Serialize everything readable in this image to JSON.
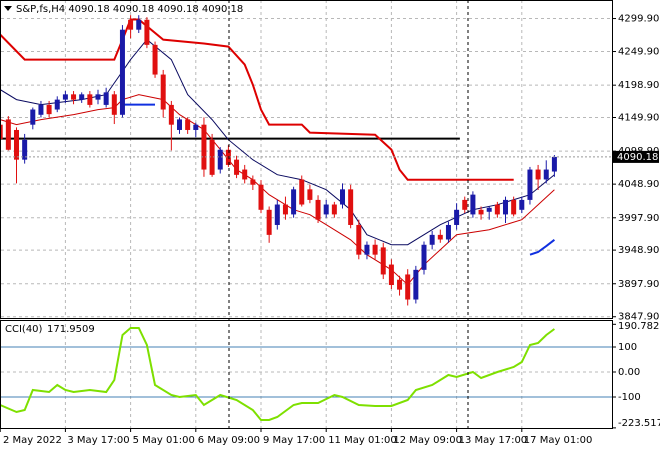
{
  "chart_data": [
    {
      "type": "candlestick",
      "title": "S&P,fs,H4 4090.18 4090.18 4090.18 4090.18",
      "categories": [
        "2 May 2022",
        null,
        null,
        null,
        null,
        null,
        null,
        null,
        "3 May 17:00",
        null,
        null,
        null,
        null,
        null,
        null,
        null,
        "5 May 01:00",
        null,
        null,
        null,
        null,
        null,
        null,
        null,
        "6 May 09:00",
        null,
        null,
        null,
        null,
        null,
        null,
        null,
        "9 May 17:00",
        null,
        null,
        null,
        null,
        null,
        null,
        null,
        "11 May 01:00",
        null,
        null,
        null,
        null,
        null,
        null,
        null,
        "12 May 09:00",
        null,
        null,
        null,
        null,
        null,
        null,
        null,
        "13 May 17:00",
        null,
        null,
        null,
        null,
        null,
        null,
        null,
        "17 May 01:00",
        null,
        null,
        null,
        null
      ],
      "open": [
        4139,
        4147,
        4131,
        4086,
        4139,
        4154,
        4169,
        4162,
        4177,
        4185,
        4177,
        4185,
        4177,
        4169,
        4185,
        4154,
        4298,
        4283,
        4298,
        4260,
        4215,
        4169,
        4131,
        4147,
        4131,
        4139,
        4116,
        4071,
        4101,
        4086,
        4071,
        4056,
        4048,
        4010,
        3987,
        4018,
        4003,
        4056,
        4041,
        4025,
        4003,
        4018,
        4018,
        4041,
        3987,
        3942,
        3957,
        3953,
        3927,
        3904,
        3912,
        3874,
        3919,
        3957,
        3972,
        3965,
        3987,
        4025,
        4003,
        4010,
        4007,
        4018,
        4003,
        4025,
        4010,
        4025,
        4071,
        4056,
        4068
      ],
      "high": [
        4145,
        4152,
        4135,
        4125,
        4165,
        4175,
        4175,
        4182,
        4190,
        4190,
        4188,
        4190,
        4192,
        4195,
        4190,
        4290,
        4305,
        4305,
        4302,
        4265,
        4222,
        4175,
        4150,
        4150,
        4142,
        4150,
        4125,
        4105,
        4108,
        4092,
        4078,
        4062,
        4055,
        4015,
        4025,
        4030,
        4045,
        4062,
        4048,
        4032,
        4025,
        4022,
        4050,
        4048,
        3995,
        3962,
        3965,
        3960,
        3935,
        3910,
        3920,
        3925,
        3962,
        3978,
        3980,
        3992,
        4020,
        4030,
        4038,
        4015,
        4015,
        4022,
        4030,
        4030,
        4030,
        4075,
        4078,
        4085,
        4093
      ],
      "low": [
        4110,
        4100,
        4050,
        4080,
        4132,
        4150,
        4150,
        4158,
        4172,
        4170,
        4172,
        4165,
        4170,
        4165,
        4140,
        4150,
        4270,
        4278,
        4255,
        4210,
        4150,
        4100,
        4125,
        4125,
        4120,
        4060,
        4060,
        4065,
        4075,
        4058,
        4050,
        4040,
        4005,
        3960,
        3980,
        3995,
        3998,
        4015,
        4020,
        3990,
        3998,
        3998,
        4012,
        3982,
        3935,
        3935,
        3935,
        3905,
        3890,
        3880,
        3865,
        3868,
        3912,
        3950,
        3960,
        3960,
        3980,
        4005,
        3998,
        3995,
        3995,
        3998,
        3990,
        4000,
        4005,
        4018,
        4040,
        4050,
        4060
      ],
      "close": [
        4117,
        4101,
        4086,
        4116,
        4162,
        4169,
        4155,
        4177,
        4185,
        4177,
        4185,
        4169,
        4185,
        4188,
        4154,
        4283,
        4283,
        4298,
        4260,
        4215,
        4162,
        4139,
        4147,
        4131,
        4139,
        4071,
        4063,
        4101,
        4078,
        4063,
        4056,
        4048,
        4010,
        3972,
        4018,
        4003,
        4041,
        4018,
        4025,
        3995,
        4018,
        4003,
        4041,
        3987,
        3942,
        3957,
        3942,
        3912,
        3896,
        3889,
        3874,
        3919,
        3957,
        3972,
        3965,
        3987,
        4010,
        4010,
        4033,
        4003,
        4013,
        4003,
        4025,
        4003,
        4025,
        4071,
        4056,
        4071,
        4090.18
      ],
      "up_color": "#1a1aa8",
      "down_color": "#e01010",
      "overlays": [
        {
          "color": "#dd0000",
          "width": 2,
          "x": [
            0,
            3,
            14,
            15,
            16,
            17,
            20,
            25,
            28,
            30,
            31,
            32,
            33,
            37,
            38,
            46,
            48,
            49,
            50,
            63
          ],
          "values": [
            4275.6,
            4237.7,
            4237.7,
            4268.0,
            4298.4,
            4298.4,
            4268.0,
            4262.0,
            4257.4,
            4230.1,
            4199.8,
            4161.9,
            4139.1,
            4139.1,
            4127.0,
            4123.9,
            4101.2,
            4070.8,
            4055.7,
            4055.7
          ]
        },
        {
          "color": "#0a0a60",
          "width": 1,
          "x": [
            0,
            2,
            5,
            10,
            13,
            16,
            18,
            21,
            23,
            26,
            28,
            31,
            34,
            37,
            40,
            43,
            45,
            48,
            50,
            54,
            58,
            61,
            65,
            68
          ],
          "values": [
            4192.2,
            4177.0,
            4169.4,
            4177.0,
            4184.6,
            4237.7,
            4268.0,
            4237.7,
            4184.6,
            4146.7,
            4116.3,
            4086.0,
            4063.2,
            4055.7,
            4040.5,
            4010.2,
            3972.2,
            3957.1,
            3957.1,
            3987.4,
            4010.2,
            4017.7,
            4032.9,
            4063.2
          ]
        },
        {
          "color": "#cc0000",
          "width": 1,
          "x": [
            0,
            2,
            5,
            9,
            12,
            14,
            15,
            17,
            20,
            22,
            25,
            27,
            29,
            31,
            33,
            36,
            38,
            40,
            43,
            45,
            48,
            50,
            52,
            54,
            56,
            60,
            64,
            66,
            68
          ],
          "values": [
            4146.7,
            4139.1,
            4146.7,
            4154.3,
            4161.9,
            4164.9,
            4177.0,
            4184.6,
            4177.0,
            4154.3,
            4131.5,
            4101.2,
            4070.8,
            4055.7,
            4032.9,
            4010.2,
            4002.6,
            3987.4,
            3964.6,
            3941.9,
            3919.1,
            3896.4,
            3926.7,
            3949.5,
            3972.2,
            3979.8,
            3995.0,
            4017.7,
            4040.5
          ]
        },
        {
          "color": "#1030e0",
          "width": 2,
          "x": [
            15,
            19
          ],
          "values": [
            4169.4,
            4169.4
          ]
        },
        {
          "color": "#1030e0",
          "width": 2,
          "x": [
            65,
            66,
            67,
            68
          ],
          "values": [
            3941.9,
            3946.0,
            3955.0,
            3964.6
          ]
        }
      ],
      "hline": {
        "value": 4117.9,
        "x": [
          0,
          56.4
        ],
        "color": "#000000"
      },
      "ylim": [
        3846,
        4328
      ],
      "yticks": [
        {
          "value": 4299.9,
          "label": "4299.90"
        },
        {
          "value": 4249.9,
          "label": "4249.90"
        },
        {
          "value": 4198.9,
          "label": "4198.90"
        },
        {
          "value": 4149.9,
          "label": "4149.90"
        },
        {
          "value": 4098.9,
          "label": "4098.90"
        },
        {
          "value": 4048.9,
          "label": "4048.90"
        },
        {
          "value": 3997.9,
          "label": "3997.90"
        },
        {
          "value": 3948.9,
          "label": "3948.90"
        },
        {
          "value": 3897.9,
          "label": "3897.90"
        },
        {
          "value": 3847.9,
          "label": "3847.90"
        }
      ],
      "grid": true
    },
    {
      "type": "line",
      "title": "CCI(40)",
      "color": "#7ee000",
      "x": [
        0,
        2,
        3,
        4,
        6,
        7,
        8,
        9,
        11,
        13,
        14,
        15,
        16,
        17,
        18,
        19,
        21,
        22,
        24,
        25,
        27,
        29,
        31,
        32,
        33,
        34,
        36,
        37,
        39,
        41,
        42,
        44,
        46,
        48,
        50,
        51,
        53,
        55,
        56,
        58,
        59,
        61,
        63,
        64,
        65,
        66,
        67,
        68
      ],
      "values": [
        -132,
        -160,
        -152,
        -72,
        -80,
        -52,
        -72,
        -80,
        -72,
        -80,
        -32,
        148,
        176,
        176,
        108,
        -52,
        -92,
        -100,
        -92,
        -132,
        -92,
        -112,
        -152,
        -192,
        -192,
        -180,
        -132,
        -124,
        -124,
        -92,
        -100,
        -132,
        -136,
        -136,
        -112,
        -72,
        -52,
        -12,
        -20,
        0,
        -24,
        0,
        20,
        40,
        108,
        116,
        148,
        171.9509
      ],
      "levels": [
        100,
        -100
      ],
      "level_color": "#4682b4",
      "ylim": [
        -224,
        208
      ],
      "yticks": [
        190.7828,
        100,
        {
          "value": 0,
          "label": "0.00"
        },
        -100,
        -223.5174
      ]
    }
  ]
}
